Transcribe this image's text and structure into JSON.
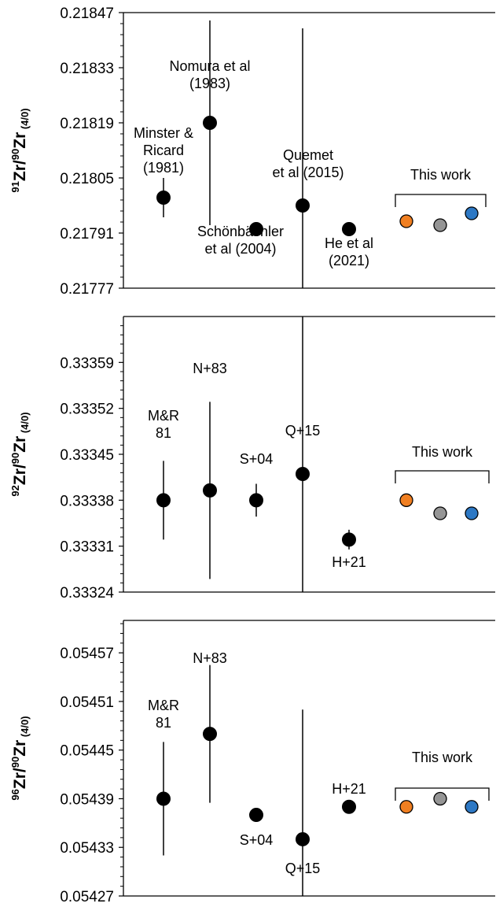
{
  "colors": {
    "literature": "#000000",
    "this_work_1": "#f07f21",
    "this_work_2": "#959595",
    "this_work_3": "#2d78c4"
  },
  "chart_data": [
    {
      "type": "scatter",
      "ylabel": {
        "sup": "91",
        "main": "Zr/",
        "sup2": "90",
        "main2": "Zr",
        "sub": "(4/0)"
      },
      "ylim": [
        0.21777,
        0.21847
      ],
      "yticks": [
        "0.21777",
        "0.21791",
        "0.21805",
        "0.21819",
        "0.21833",
        "0.21847"
      ],
      "points": [
        {
          "y": 0.218,
          "err": 5e-05,
          "label": [
            "Minster &",
            "Ricard",
            "(1981)"
          ],
          "color": "#000000"
        },
        {
          "y": 0.21819,
          "err": 0.00026,
          "label": [
            "Nomura et al",
            "(1983)"
          ],
          "color": "#000000"
        },
        {
          "y": 0.21792,
          "err": 1.5e-05,
          "label": [
            "Schönbächler",
            "et al (2004)"
          ],
          "color": "#000000"
        },
        {
          "y": 0.21798,
          "err": 0.00045,
          "label": [
            "Quemet",
            "et al (2015)"
          ],
          "color": "#000000"
        },
        {
          "y": 0.21792,
          "err": 0,
          "label": [
            "He et al",
            "(2021)"
          ],
          "color": "#000000"
        },
        {
          "y": 0.21794,
          "err": 0,
          "label": [],
          "color": "#f07f21"
        },
        {
          "y": 0.21793,
          "err": 0,
          "label": [],
          "color": "#959595"
        },
        {
          "y": 0.21796,
          "err": 0,
          "label": [],
          "color": "#2d78c4"
        }
      ],
      "group_label": "This work"
    },
    {
      "type": "scatter",
      "ylabel": {
        "sup": "92",
        "main": "Zr/",
        "sup2": "90",
        "main2": "Zr",
        "sub": "(4/0)"
      },
      "ylim": [
        0.33324,
        0.33366
      ],
      "yticks": [
        "0.33324",
        "0.33331",
        "0.33338",
        "0.33345",
        "0.33352",
        "0.33359"
      ],
      "points": [
        {
          "y": 0.33338,
          "err": 6e-05,
          "label": [
            "M&R",
            "81"
          ],
          "color": "#000000"
        },
        {
          "y": 0.333395,
          "err": 0.000135,
          "label": [
            "N+83"
          ],
          "color": "#000000"
        },
        {
          "y": 0.33338,
          "err": 2.5e-05,
          "label": [
            "S+04"
          ],
          "color": "#000000"
        },
        {
          "y": 0.33342,
          "err": 0.0005,
          "label": [
            "Q+15"
          ],
          "color": "#000000"
        },
        {
          "y": 0.33332,
          "err": 1.5e-05,
          "label": [
            "H+21"
          ],
          "color": "#000000"
        },
        {
          "y": 0.33338,
          "err": 0,
          "label": [],
          "color": "#f07f21"
        },
        {
          "y": 0.33336,
          "err": 0,
          "label": [],
          "color": "#959595"
        },
        {
          "y": 0.33336,
          "err": 0,
          "label": [],
          "color": "#2d78c4"
        }
      ],
      "group_label": "This work"
    },
    {
      "type": "scatter",
      "ylabel": {
        "sup": "96",
        "main": "Zr/",
        "sup2": "90",
        "main2": "Zr",
        "sub": "(4/0)"
      },
      "ylim": [
        0.05427,
        0.05461
      ],
      "yticks": [
        "0.05427",
        "0.05433",
        "0.05439",
        "0.05445",
        "0.05451",
        "0.05457"
      ],
      "points": [
        {
          "y": 0.05439,
          "err": 7e-05,
          "label": [
            "M&R",
            "81"
          ],
          "color": "#000000"
        },
        {
          "y": 0.05447,
          "err": 8.5e-05,
          "label": [
            "N+83"
          ],
          "color": "#000000"
        },
        {
          "y": 0.05437,
          "err": 0,
          "label": [
            "S+04"
          ],
          "color": "#000000"
        },
        {
          "y": 0.05434,
          "err": 0.00016,
          "label": [
            "Q+15"
          ],
          "color": "#000000"
        },
        {
          "y": 0.05438,
          "err": 0,
          "label": [
            "H+21"
          ],
          "color": "#000000"
        },
        {
          "y": 0.05438,
          "err": 0,
          "label": [],
          "color": "#f07f21"
        },
        {
          "y": 0.05439,
          "err": 0,
          "label": [],
          "color": "#959595"
        },
        {
          "y": 0.05438,
          "err": 0,
          "label": [],
          "color": "#2d78c4"
        }
      ],
      "group_label": "This work"
    }
  ]
}
